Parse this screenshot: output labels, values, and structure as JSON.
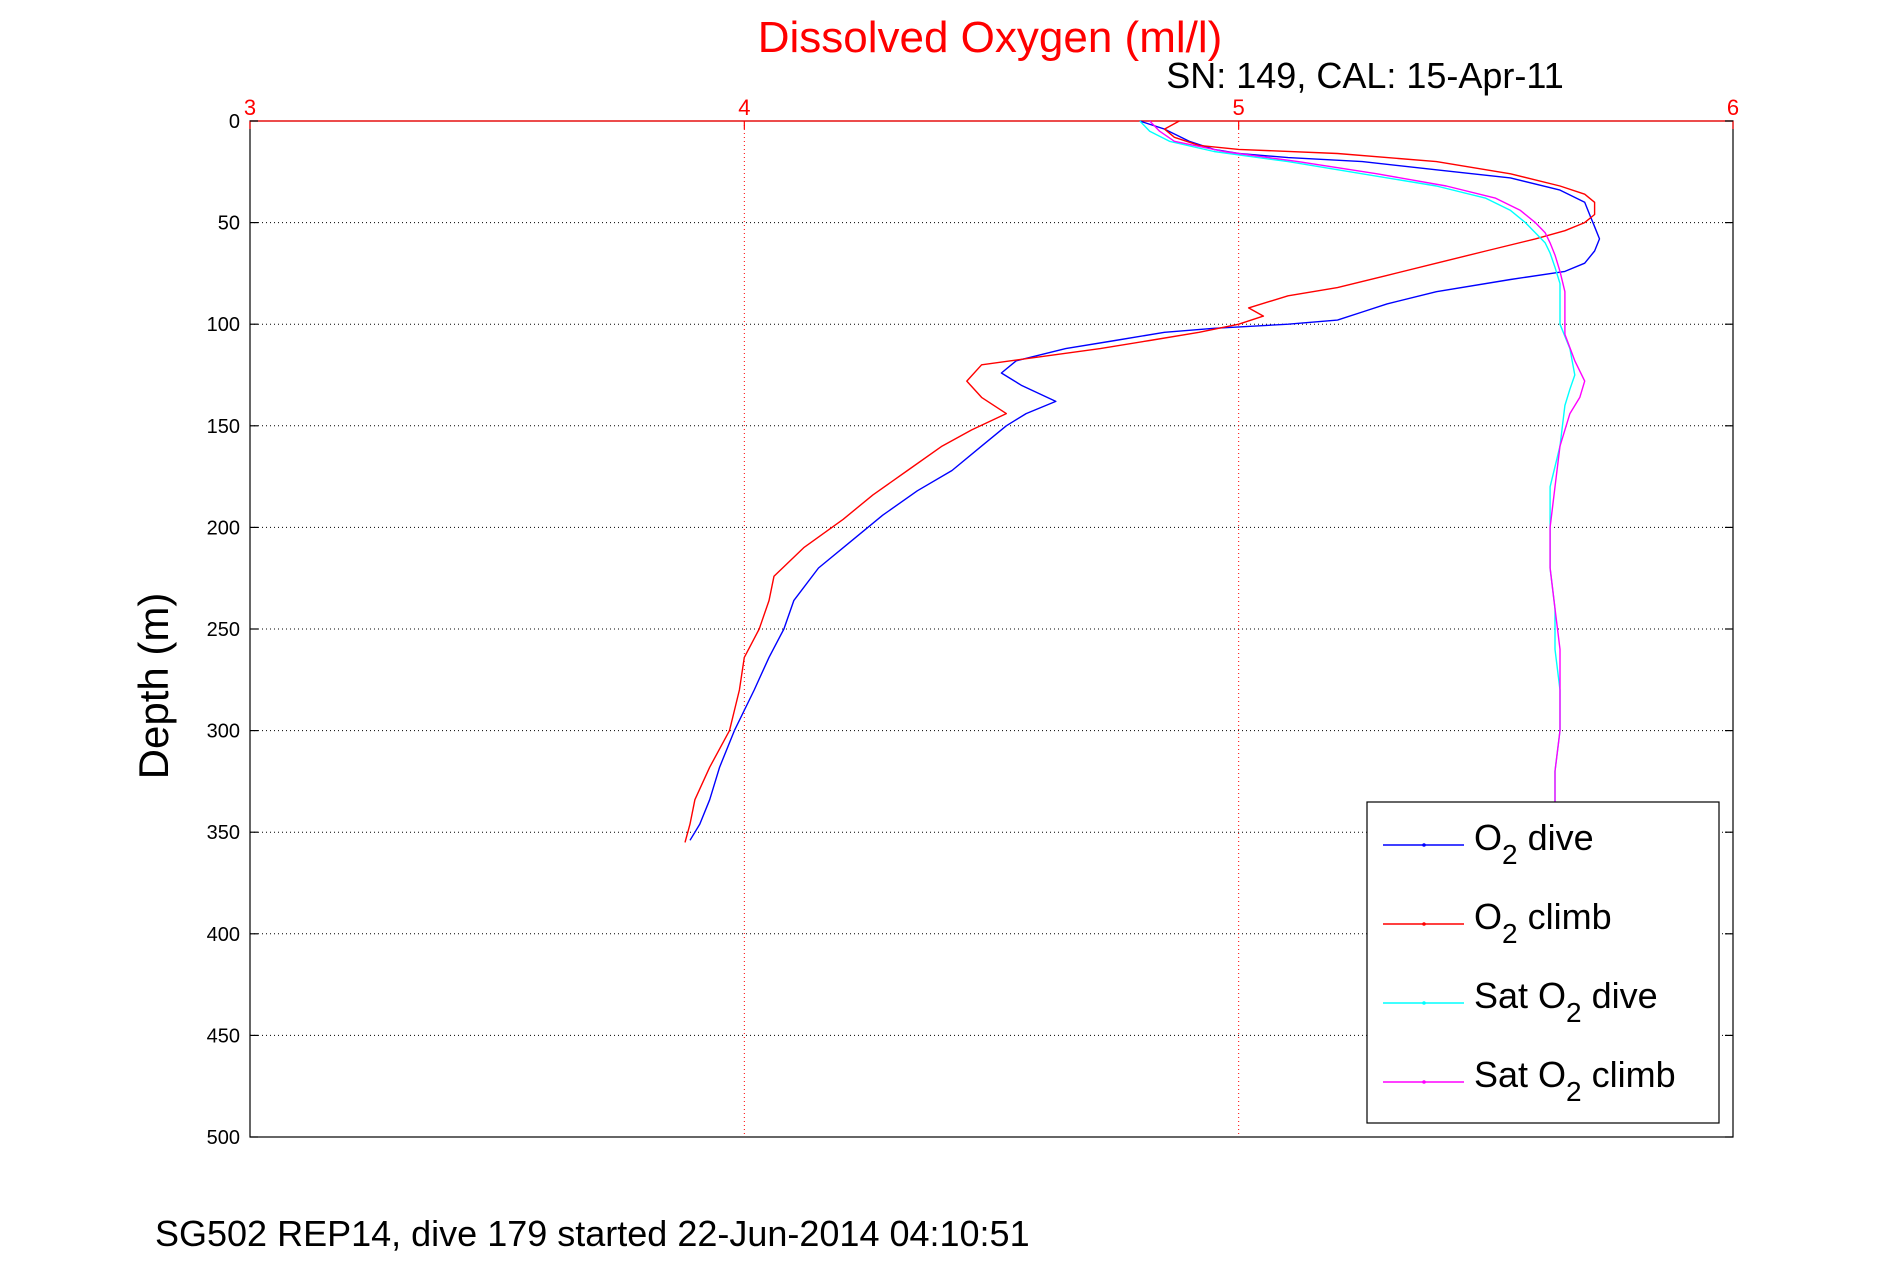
{
  "chart_data": {
    "type": "line",
    "title": "Dissolved Oxygen (ml/l)",
    "subtitle": "SN: 149, CAL: 15-Apr-11",
    "footer": "SG502 REP14, dive 179 started 22-Jun-2014 04:10:51",
    "ylabel": "Depth (m)",
    "xlim": [
      3,
      6
    ],
    "ylim": [
      0,
      500
    ],
    "y_reversed": true,
    "x_axis_position": "top",
    "x_ticks": [
      3,
      4,
      5,
      6
    ],
    "y_ticks": [
      0,
      50,
      100,
      150,
      200,
      250,
      300,
      350,
      400,
      450,
      500
    ],
    "grid": true,
    "legend_position": "bottom-right",
    "colors": {
      "title": "#ff0000",
      "x_axis": "#ff0000",
      "grid_x": "#ff0000",
      "grid_y": "#000000"
    },
    "series": [
      {
        "name": "O2 dive",
        "legend_main": "O",
        "legend_sub": "2",
        "legend_suffix": " dive",
        "color": "#0000ff",
        "points": [
          [
            4.8,
            0
          ],
          [
            4.85,
            4
          ],
          [
            4.9,
            10
          ],
          [
            4.95,
            14
          ],
          [
            5.0,
            16
          ],
          [
            5.1,
            18
          ],
          [
            5.25,
            20
          ],
          [
            5.4,
            24
          ],
          [
            5.55,
            28
          ],
          [
            5.65,
            34
          ],
          [
            5.7,
            40
          ],
          [
            5.71,
            46
          ],
          [
            5.72,
            52
          ],
          [
            5.73,
            58
          ],
          [
            5.72,
            64
          ],
          [
            5.7,
            70
          ],
          [
            5.66,
            74
          ],
          [
            5.55,
            78
          ],
          [
            5.4,
            84
          ],
          [
            5.3,
            90
          ],
          [
            5.25,
            94
          ],
          [
            5.2,
            98
          ],
          [
            5.1,
            100
          ],
          [
            4.95,
            102
          ],
          [
            4.85,
            104
          ],
          [
            4.75,
            108
          ],
          [
            4.65,
            112
          ],
          [
            4.55,
            118
          ],
          [
            4.52,
            124
          ],
          [
            4.56,
            130
          ],
          [
            4.63,
            138
          ],
          [
            4.57,
            144
          ],
          [
            4.53,
            150
          ],
          [
            4.48,
            160
          ],
          [
            4.42,
            172
          ],
          [
            4.35,
            182
          ],
          [
            4.28,
            194
          ],
          [
            4.22,
            206
          ],
          [
            4.15,
            220
          ],
          [
            4.1,
            236
          ],
          [
            4.08,
            250
          ],
          [
            4.05,
            264
          ],
          [
            4.02,
            280
          ],
          [
            3.98,
            300
          ],
          [
            3.95,
            318
          ],
          [
            3.93,
            334
          ],
          [
            3.91,
            346
          ],
          [
            3.89,
            354
          ]
        ]
      },
      {
        "name": "O2 climb",
        "legend_main": "O",
        "legend_sub": "2",
        "legend_suffix": " climb",
        "color": "#ff0000",
        "points": [
          [
            4.88,
            0
          ],
          [
            4.85,
            4
          ],
          [
            4.87,
            8
          ],
          [
            4.92,
            12
          ],
          [
            5.0,
            14
          ],
          [
            5.2,
            16
          ],
          [
            5.4,
            20
          ],
          [
            5.55,
            26
          ],
          [
            5.65,
            32
          ],
          [
            5.7,
            36
          ],
          [
            5.72,
            40
          ],
          [
            5.72,
            46
          ],
          [
            5.7,
            50
          ],
          [
            5.66,
            54
          ],
          [
            5.6,
            58
          ],
          [
            5.5,
            64
          ],
          [
            5.4,
            70
          ],
          [
            5.3,
            76
          ],
          [
            5.2,
            82
          ],
          [
            5.1,
            86
          ],
          [
            5.02,
            92
          ],
          [
            5.05,
            96
          ],
          [
            5.0,
            100
          ],
          [
            4.92,
            104
          ],
          [
            4.82,
            108
          ],
          [
            4.72,
            112
          ],
          [
            4.6,
            116
          ],
          [
            4.48,
            120
          ],
          [
            4.45,
            128
          ],
          [
            4.48,
            136
          ],
          [
            4.53,
            144
          ],
          [
            4.46,
            152
          ],
          [
            4.4,
            160
          ],
          [
            4.33,
            172
          ],
          [
            4.26,
            184
          ],
          [
            4.2,
            196
          ],
          [
            4.12,
            210
          ],
          [
            4.06,
            224
          ],
          [
            4.05,
            236
          ],
          [
            4.03,
            250
          ],
          [
            4.0,
            264
          ],
          [
            3.99,
            280
          ],
          [
            3.97,
            300
          ],
          [
            3.93,
            318
          ],
          [
            3.9,
            334
          ],
          [
            3.89,
            346
          ],
          [
            3.88,
            355
          ]
        ]
      },
      {
        "name": "Sat O2 dive",
        "legend_main": "Sat O",
        "legend_sub": "2",
        "legend_suffix": " dive",
        "color": "#00ffff",
        "points": [
          [
            4.8,
            0
          ],
          [
            4.82,
            5
          ],
          [
            4.86,
            10
          ],
          [
            4.95,
            15
          ],
          [
            5.1,
            20
          ],
          [
            5.25,
            26
          ],
          [
            5.4,
            32
          ],
          [
            5.5,
            38
          ],
          [
            5.55,
            44
          ],
          [
            5.58,
            50
          ],
          [
            5.6,
            55
          ],
          [
            5.62,
            60
          ],
          [
            5.63,
            65
          ],
          [
            5.64,
            72
          ],
          [
            5.65,
            80
          ],
          [
            5.65,
            90
          ],
          [
            5.65,
            100
          ],
          [
            5.67,
            112
          ],
          [
            5.68,
            125
          ],
          [
            5.67,
            132
          ],
          [
            5.66,
            140
          ],
          [
            5.65,
            160
          ],
          [
            5.63,
            180
          ],
          [
            5.63,
            200
          ],
          [
            5.63,
            220
          ],
          [
            5.64,
            240
          ],
          [
            5.64,
            260
          ],
          [
            5.65,
            280
          ],
          [
            5.65,
            300
          ],
          [
            5.64,
            320
          ],
          [
            5.64,
            335
          ]
        ]
      },
      {
        "name": "Sat O2 climb",
        "legend_main": "Sat O",
        "legend_sub": "2",
        "legend_suffix": " climb",
        "color": "#ff00ff",
        "points": [
          [
            4.82,
            0
          ],
          [
            4.84,
            5
          ],
          [
            4.87,
            10
          ],
          [
            4.97,
            15
          ],
          [
            5.12,
            20
          ],
          [
            5.28,
            26
          ],
          [
            5.42,
            32
          ],
          [
            5.52,
            38
          ],
          [
            5.57,
            44
          ],
          [
            5.6,
            50
          ],
          [
            5.62,
            55
          ],
          [
            5.63,
            60
          ],
          [
            5.64,
            66
          ],
          [
            5.65,
            74
          ],
          [
            5.66,
            84
          ],
          [
            5.66,
            95
          ],
          [
            5.66,
            105
          ],
          [
            5.68,
            118
          ],
          [
            5.7,
            128
          ],
          [
            5.69,
            136
          ],
          [
            5.67,
            144
          ],
          [
            5.65,
            160
          ],
          [
            5.64,
            180
          ],
          [
            5.63,
            200
          ],
          [
            5.63,
            220
          ],
          [
            5.64,
            240
          ],
          [
            5.65,
            260
          ],
          [
            5.65,
            280
          ],
          [
            5.65,
            300
          ],
          [
            5.64,
            320
          ],
          [
            5.64,
            335
          ]
        ]
      }
    ]
  }
}
